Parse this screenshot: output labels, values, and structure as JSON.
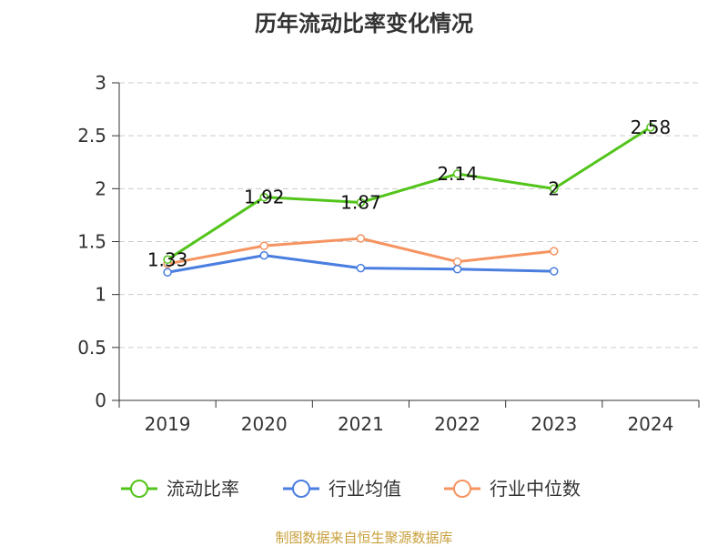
{
  "chart_data": {
    "type": "line",
    "title": "历年流动比率变化情况",
    "xlabel": "",
    "ylabel": "",
    "categories": [
      "2019",
      "2020",
      "2021",
      "2022",
      "2023",
      "2024"
    ],
    "ylim": [
      0,
      3
    ],
    "yticks": [
      "0",
      "0.5",
      "1",
      "1.5",
      "2",
      "2.5",
      "3"
    ],
    "grid": true,
    "legend_position": "bottom",
    "series": [
      {
        "name": "流动比率",
        "color": "#52c41a",
        "values": [
          1.33,
          1.92,
          1.87,
          2.14,
          2.0,
          2.58
        ],
        "labels": [
          "1.33",
          "1.92",
          "1.87",
          "2.14",
          "2",
          "2.58"
        ]
      },
      {
        "name": "行业均值",
        "color": "#4a7ee0",
        "values": [
          1.21,
          1.37,
          1.25,
          1.24,
          1.22,
          null
        ]
      },
      {
        "name": "行业中位数",
        "color": "#f59461",
        "values": [
          1.29,
          1.46,
          1.53,
          1.31,
          1.41,
          null
        ]
      }
    ],
    "source": "制图数据来自恒生聚源数据库"
  }
}
